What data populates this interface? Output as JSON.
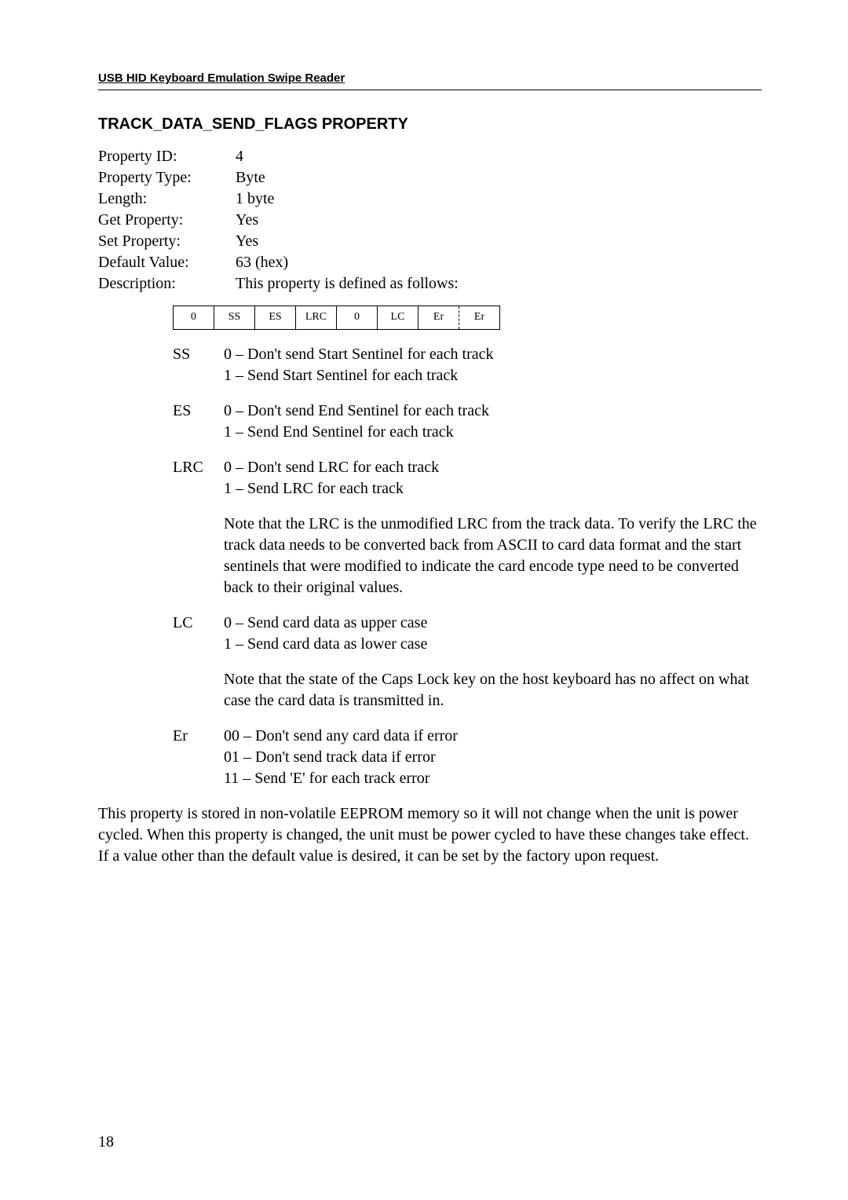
{
  "header": {
    "text": "USB HID Keyboard Emulation Swipe Reader"
  },
  "section_title": "TRACK_DATA_SEND_FLAGS PROPERTY",
  "properties": {
    "rows": [
      {
        "label": "Property ID:",
        "value": "4"
      },
      {
        "label": "Property Type:",
        "value": "Byte"
      },
      {
        "label": "Length:",
        "value": "1 byte"
      },
      {
        "label": "Get Property:",
        "value": "Yes"
      },
      {
        "label": "Set Property:",
        "value": "Yes"
      },
      {
        "label": "Default Value:",
        "value": "63 (hex)"
      },
      {
        "label": "Description:",
        "value": "This property is defined as follows:"
      }
    ]
  },
  "bit_table": {
    "cells": [
      "0",
      "SS",
      "ES",
      "LRC",
      "0",
      "LC",
      "Er",
      "Er"
    ]
  },
  "defs": {
    "ss": {
      "key": "SS",
      "line1": "0 – Don't send Start Sentinel for each track",
      "line2": "1 – Send Start Sentinel for each track"
    },
    "es": {
      "key": "ES",
      "line1": "0 – Don't send End Sentinel for each track",
      "line2": "1 – Send End Sentinel for each track"
    },
    "lrc": {
      "key": "LRC",
      "line1": "0 – Don't send LRC for each track",
      "line2": "1 – Send LRC for each track"
    },
    "lrc_note": "Note that the LRC is the unmodified LRC from the track data.  To verify the LRC the track data needs to be converted back from ASCII to card data format and the start sentinels that were modified to indicate the card encode type need to be converted back to their original values.",
    "lc": {
      "key": "LC",
      "line1": "0 – Send card data as upper case",
      "line2": "1 – Send card data as lower case"
    },
    "lc_note": "Note that the state of the Caps Lock key on the host keyboard has no affect on what case the card data is transmitted in.",
    "er": {
      "key": "Er",
      "line1": "00 – Don't send any card data if error",
      "line2": "01 – Don't send track data if error",
      "line3": "11 – Send 'E' for each track error"
    }
  },
  "final_paragraph": "This property is stored in non-volatile EEPROM memory so it will not change when the unit is power cycled.  When this property is changed, the unit must be power cycled to have these changes take effect.  If a value other than the default value is desired, it can be set by the factory upon request.",
  "page_number": "18"
}
